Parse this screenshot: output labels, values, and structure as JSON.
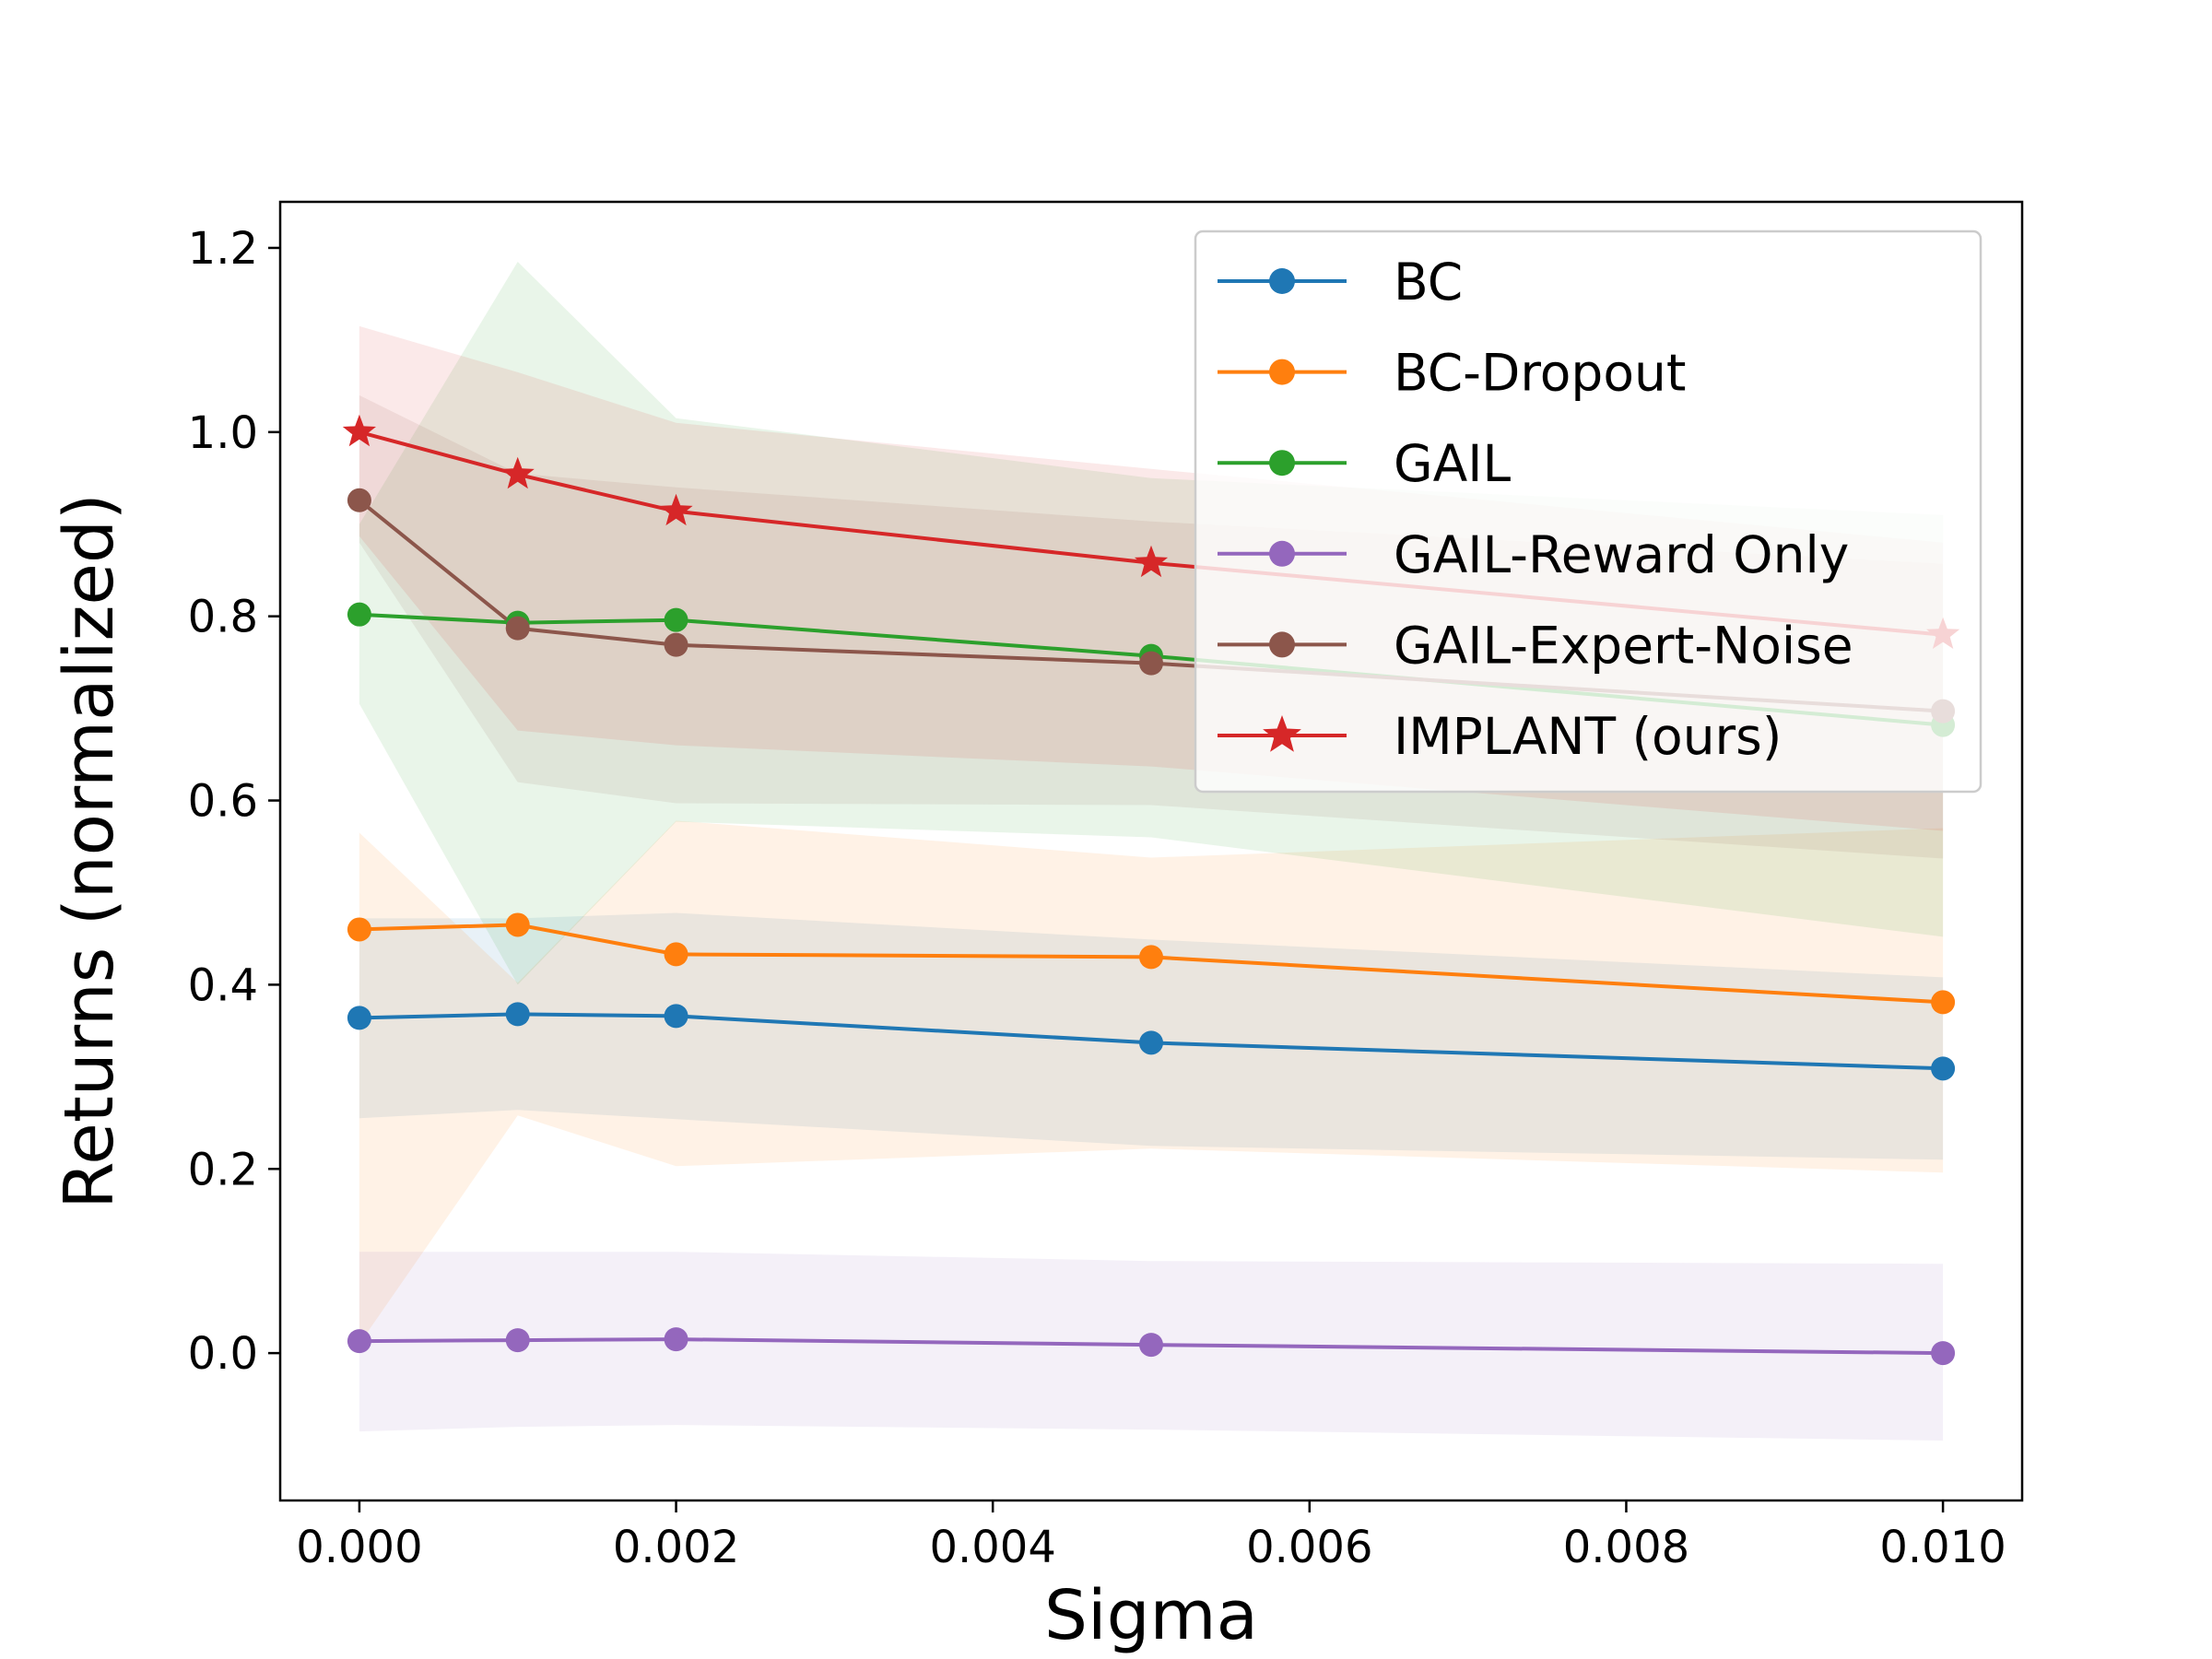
{
  "chart_data": {
    "type": "line",
    "title": "",
    "xlabel": "Sigma",
    "ylabel": "Returns (normalized)",
    "xlim": [
      -0.0005,
      0.0105
    ],
    "ylim": [
      -0.16,
      1.25
    ],
    "x": [
      0.0,
      0.001,
      0.002,
      0.005,
      0.01
    ],
    "x_ticks": [
      0.0,
      0.002,
      0.004,
      0.006,
      0.008,
      0.01
    ],
    "x_tick_labels": [
      "0.000",
      "0.002",
      "0.004",
      "0.006",
      "0.008",
      "0.010"
    ],
    "y_ticks": [
      0.0,
      0.2,
      0.4,
      0.6,
      0.8,
      1.0,
      1.2
    ],
    "y_tick_labels": [
      "0.0",
      "0.2",
      "0.4",
      "0.6",
      "0.8",
      "1.0",
      "1.2"
    ],
    "grid": false,
    "legend_position": "top-right",
    "series": [
      {
        "name": "BC",
        "color": "#1f77b4",
        "marker": "circle",
        "values": [
          0.364,
          0.368,
          0.366,
          0.337,
          0.309
        ],
        "lower": [
          0.255,
          0.264,
          0.254,
          0.225,
          0.21
        ],
        "upper": [
          0.472,
          0.472,
          0.478,
          0.449,
          0.408
        ]
      },
      {
        "name": "BC-Dropout",
        "color": "#ff7f0e",
        "marker": "circle",
        "values": [
          0.46,
          0.465,
          0.433,
          0.43,
          0.381
        ],
        "lower": [
          0.01,
          0.258,
          0.203,
          0.222,
          0.196
        ],
        "upper": [
          0.565,
          0.402,
          0.578,
          0.538,
          0.57
        ]
      },
      {
        "name": "GAIL",
        "color": "#2ca02c",
        "marker": "circle",
        "values": [
          0.802,
          0.793,
          0.796,
          0.757,
          0.682
        ],
        "lower": [
          0.705,
          0.4,
          0.577,
          0.56,
          0.452
        ],
        "upper": [
          0.9,
          1.185,
          1.015,
          0.95,
          0.91
        ]
      },
      {
        "name": "GAIL-Reward Only",
        "color": "#9467bd",
        "marker": "circle",
        "values": [
          0.013,
          0.014,
          0.015,
          0.009,
          0.0
        ],
        "lower": [
          -0.085,
          -0.08,
          -0.078,
          -0.083,
          -0.095
        ],
        "upper": [
          0.11,
          0.11,
          0.11,
          0.1,
          0.097
        ]
      },
      {
        "name": "GAIL-Expert-Noise",
        "color": "#8c564b",
        "marker": "circle",
        "values": [
          0.926,
          0.787,
          0.769,
          0.749,
          0.697
        ],
        "lower": [
          0.88,
          0.62,
          0.597,
          0.595,
          0.537
        ],
        "upper": [
          1.04,
          0.955,
          0.94,
          0.903,
          0.857
        ]
      },
      {
        "name": "IMPLANT (ours)",
        "color": "#d62728",
        "marker": "star",
        "values": [
          1.0,
          0.954,
          0.914,
          0.858,
          0.78
        ],
        "lower": [
          0.887,
          0.676,
          0.66,
          0.637,
          0.567
        ],
        "upper": [
          1.115,
          1.065,
          1.01,
          0.96,
          0.88
        ]
      }
    ]
  }
}
